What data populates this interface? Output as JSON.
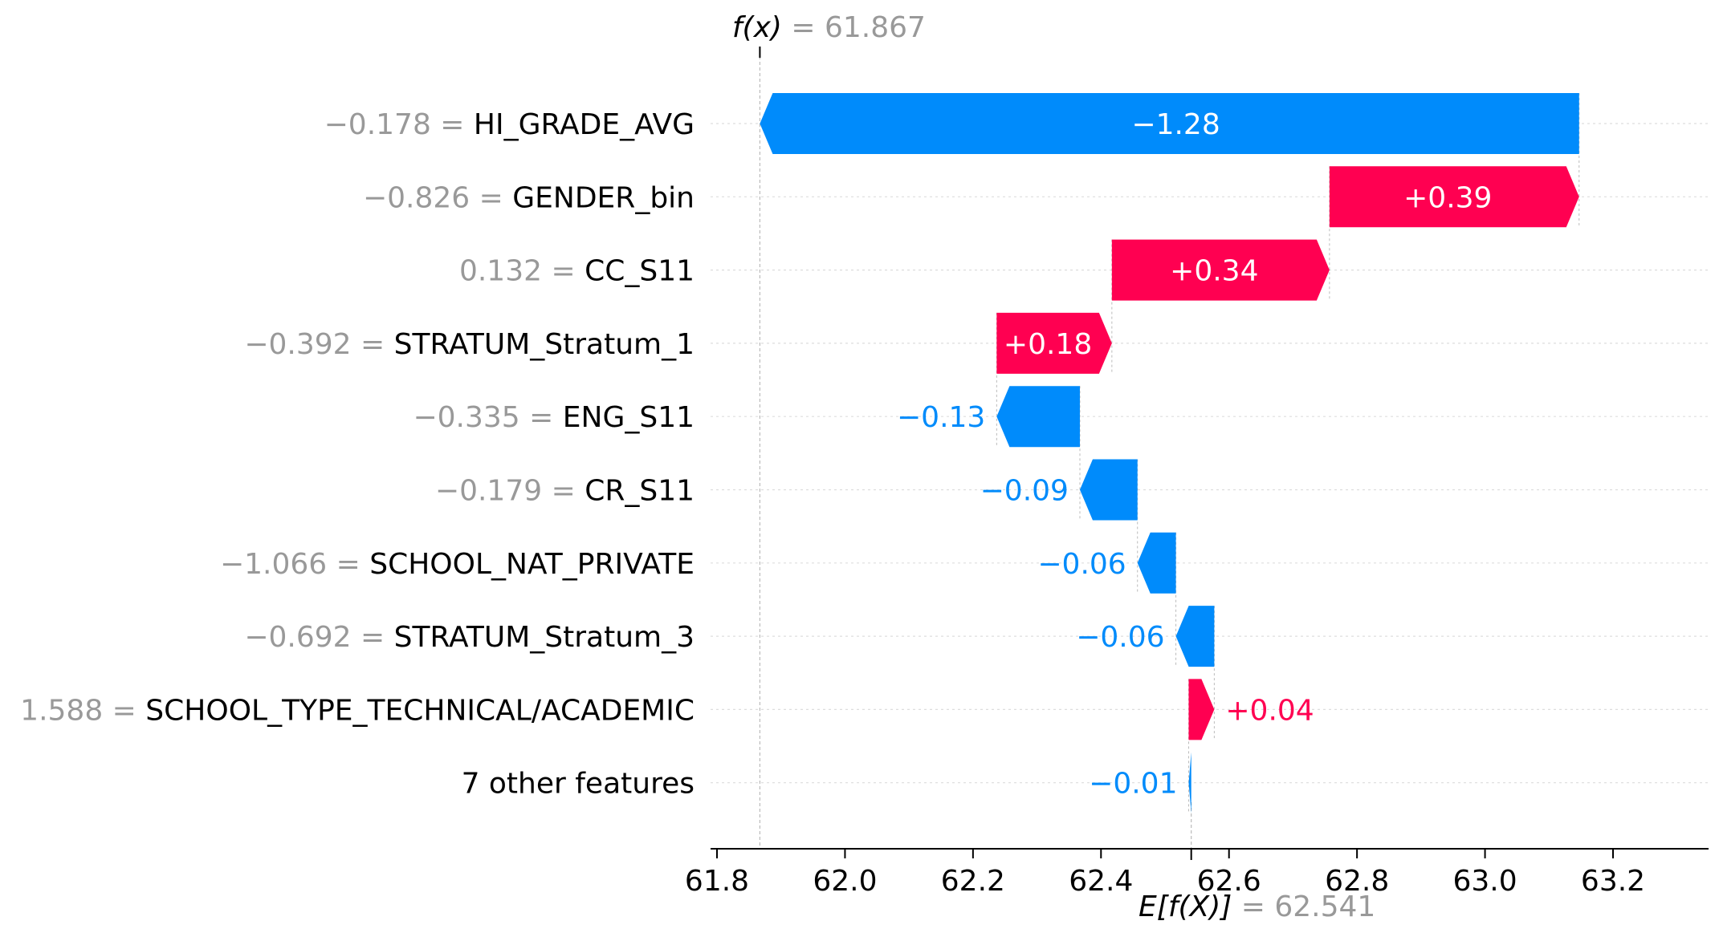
{
  "chart_data": {
    "type": "waterfall",
    "fx": {
      "label": "f(x)",
      "value": "61.867"
    },
    "efx": {
      "label": "E[f(X)]",
      "value": "62.541"
    },
    "xlim": [
      61.78,
      63.35
    ],
    "xticks": [
      "61.8",
      "62.0",
      "62.2",
      "62.4",
      "62.6",
      "62.8",
      "63.0",
      "63.2"
    ],
    "features": [
      {
        "value": "−0.178",
        "name": "HI_GRADE_AVG",
        "contribution": -1.28,
        "label": "−1.28"
      },
      {
        "value": "−0.826",
        "name": "GENDER_bin",
        "contribution": 0.39,
        "label": "+0.39"
      },
      {
        "value": "0.132",
        "name": "CC_S11",
        "contribution": 0.34,
        "label": "+0.34"
      },
      {
        "value": "−0.392",
        "name": "STRATUM_Stratum_1",
        "contribution": 0.18,
        "label": "+0.18"
      },
      {
        "value": "−0.335",
        "name": "ENG_S11",
        "contribution": -0.13,
        "label": "−0.13"
      },
      {
        "value": "−0.179",
        "name": "CR_S11",
        "contribution": -0.09,
        "label": "−0.09"
      },
      {
        "value": "−1.066",
        "name": "SCHOOL_NAT_PRIVATE",
        "contribution": -0.06,
        "label": "−0.06"
      },
      {
        "value": "−0.692",
        "name": "STRATUM_Stratum_3",
        "contribution": -0.06,
        "label": "−0.06"
      },
      {
        "value": "1.588",
        "name": "SCHOOL_TYPE_TECHNICAL/ACADEMIC",
        "contribution": 0.04,
        "label": "+0.04"
      },
      {
        "value": "",
        "name": "7 other features",
        "contribution": -0.01,
        "label": "−0.01"
      }
    ],
    "colors": {
      "positive": "#ff0051",
      "negative": "#008bfb",
      "axis": "#000000",
      "muted": "#999999"
    }
  }
}
